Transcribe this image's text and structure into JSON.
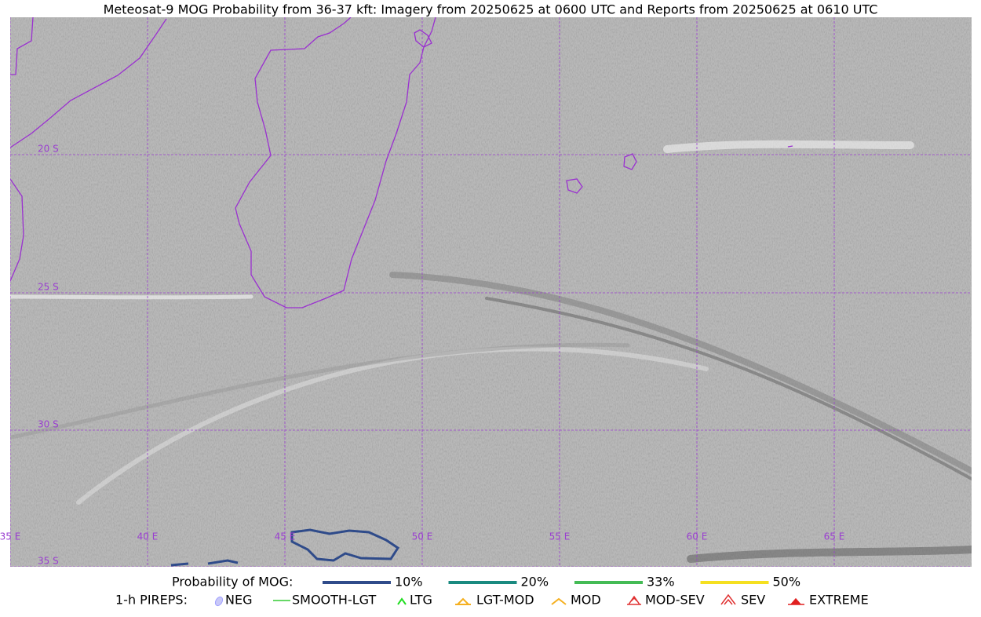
{
  "title": "Meteosat-9 MOG Probability from 36-37 kft: Imagery from 20250625 at 0600 UTC and Reports from 20250625 at 0610 UTC",
  "map": {
    "lat_labels": [
      "20 S",
      "25 S",
      "30 S",
      "35 S"
    ],
    "lon_labels": [
      "35 E",
      "40 E",
      "45 E",
      "50 E",
      "55 E",
      "60 E",
      "65 E"
    ]
  },
  "legend": {
    "probability_title": "Probability of MOG:",
    "probability_items": [
      {
        "label": "10%",
        "color": "#2f4b8a"
      },
      {
        "label": "20%",
        "color": "#1a8a80"
      },
      {
        "label": "33%",
        "color": "#44bb55"
      },
      {
        "label": "50%",
        "color": "#f5e020"
      }
    ],
    "pireps_title": "1-h PIREPS:",
    "pireps_items": [
      "NEG",
      "SMOOTH-LGT",
      "LTG",
      "LGT-MOD",
      "MOD",
      "MOD-SEV",
      "SEV",
      "EXTREME"
    ]
  }
}
